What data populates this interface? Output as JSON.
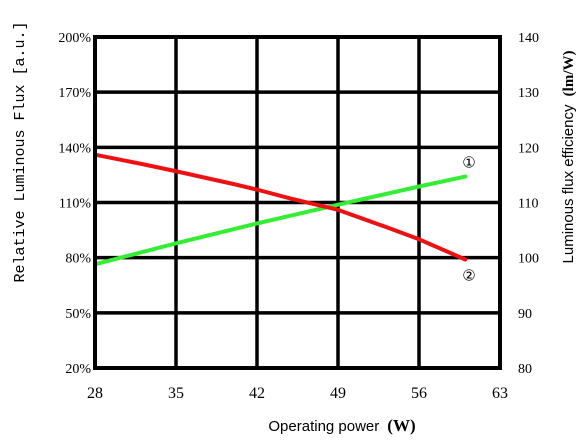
{
  "chart_data": {
    "type": "line",
    "xlabel": "Operating power",
    "xlabel_unit": "(W)",
    "ylabel_left": "Relative Luminous Flux [a.u.]",
    "ylabel_right": "Luminous flux efficiency",
    "ylabel_right_unit": "(lm/W)",
    "x_ticks": [
      "28",
      "35",
      "42",
      "49",
      "56",
      "63"
    ],
    "y_left_ticks": [
      "20%",
      "50%",
      "80%",
      "110%",
      "140%",
      "170%",
      "200%"
    ],
    "y_right_ticks": [
      "80",
      "90",
      "100",
      "110",
      "120",
      "130",
      "140"
    ],
    "xlim": [
      28,
      63
    ],
    "ylim_left": [
      20,
      200
    ],
    "ylim_right": [
      80,
      140
    ],
    "grid": true,
    "series": [
      {
        "name": "①",
        "axis": "right",
        "color": "#33ee33",
        "x": [
          28,
          35,
          42,
          49,
          56,
          60
        ],
        "values": [
          98.8,
          102.6,
          106.2,
          109.6,
          112.9,
          114.7
        ]
      },
      {
        "name": "②",
        "axis": "left",
        "color": "#ee1111",
        "x": [
          28,
          32,
          35,
          40,
          42,
          45,
          49,
          53,
          56,
          60
        ],
        "values": [
          136,
          131,
          127,
          120,
          117,
          112,
          106,
          97,
          90,
          79
        ]
      }
    ]
  }
}
